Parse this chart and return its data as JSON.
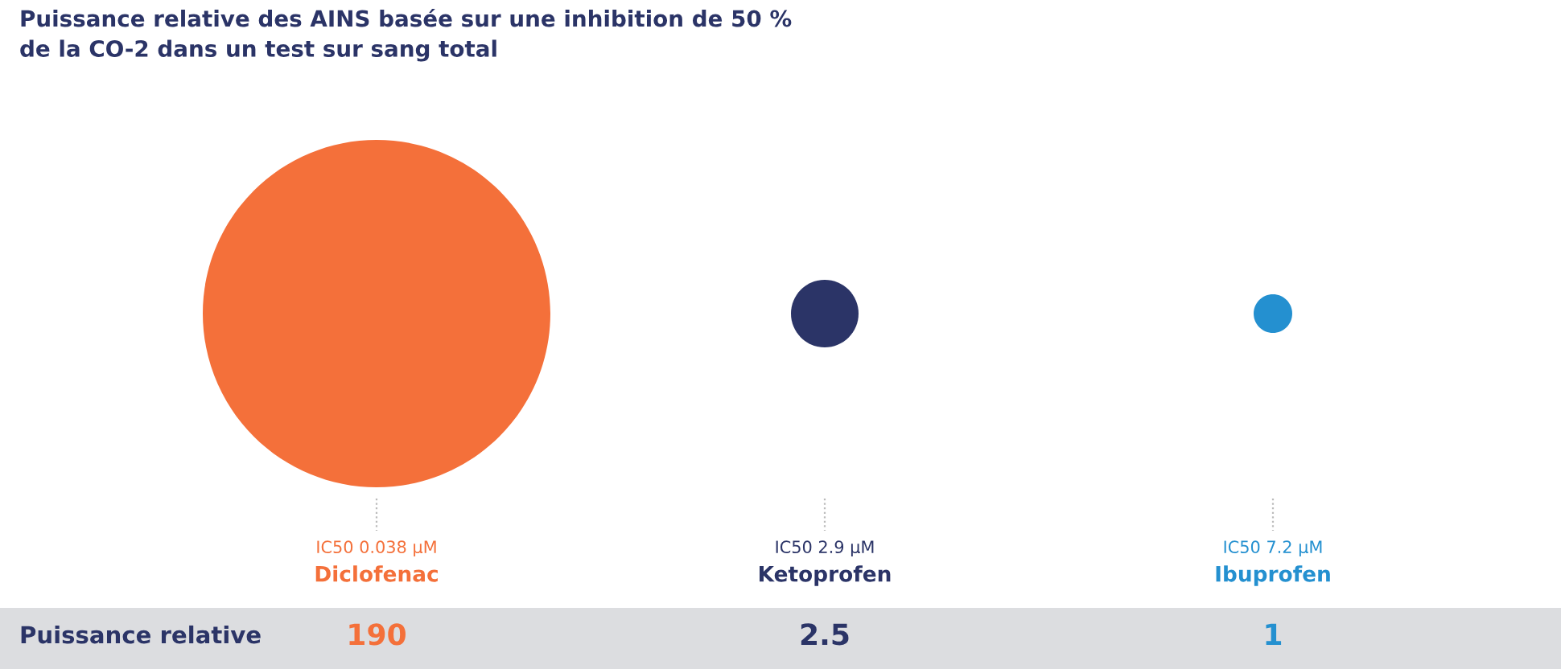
{
  "chart_data": {
    "type": "other",
    "title": "Puissance relative des AINS basée sur une inhibition de 50 %\nde la CO-2 dans un test sur sang total",
    "categories": [
      "Diclofenac",
      "Ketoprofen",
      "Ibuprofen"
    ],
    "values": [
      190,
      2.5,
      1
    ],
    "colors": [
      "#f4703a",
      "#2b3467",
      "#2490d0"
    ],
    "data_labels": true,
    "annotations": [
      {
        "text": "IC50 0.038 µM",
        "x": "Diclofenac"
      },
      {
        "text": "IC50 2.9 µM",
        "x": "Ketoprofen"
      },
      {
        "text": "IC50 7.2 µM",
        "x": "Ibuprofen"
      },
      "Puissance relative"
    ],
    "legend": false
  }
}
